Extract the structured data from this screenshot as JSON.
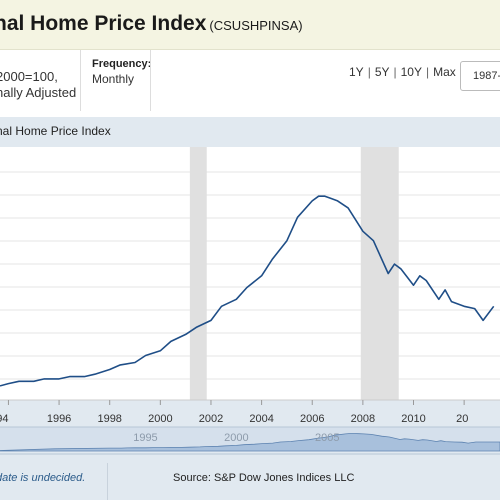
{
  "header": {
    "title": "nal Home Price Index",
    "series_id": "(CSUSHPINSA)"
  },
  "meta": {
    "units_line1": "2000=100,",
    "units_line2": "nally Adjusted",
    "frequency_label": "Frequency:",
    "frequency_value": "Monthly"
  },
  "ranges": [
    "1Y",
    "5Y",
    "10Y",
    "Max"
  ],
  "date_start": "1987-0",
  "colors": {
    "line": "#1f4e87",
    "recession": "#e0e0e0",
    "panel": "#e1e9f0",
    "nav_fill": "#a8c0dc"
  },
  "footer": {
    "note": "date is undecided.",
    "source": "Source: S&P Dow Jones Indices LLC"
  },
  "chart_data": {
    "type": "line",
    "title": "nal Home Price Index",
    "xlabel": "",
    "ylabel": "",
    "xlim": [
      "1993-09",
      "2013-06"
    ],
    "x_ticks": [
      "1994",
      "1996",
      "1998",
      "2000",
      "2002",
      "2004",
      "2006",
      "2008",
      "2010",
      "2012"
    ],
    "x_tick_labels": [
      "94",
      "1996",
      "1998",
      "2000",
      "2002",
      "2004",
      "2006",
      "2008",
      "2010",
      "20"
    ],
    "navigator_labels": [
      "1995",
      "2000",
      "2005"
    ],
    "grid": true,
    "recessions": [
      [
        "2001-03",
        "2001-11"
      ],
      [
        "2007-12",
        "2009-06"
      ]
    ],
    "series": [
      {
        "x": [
          "1993-09",
          "1994-01",
          "1994-06",
          "1995-01",
          "1995-06",
          "1996-01",
          "1996-06",
          "1997-01",
          "1997-06",
          "1998-01",
          "1998-06",
          "1999-01",
          "1999-06",
          "2000-01",
          "2000-06",
          "2001-01",
          "2001-06",
          "2002-01",
          "2002-06",
          "2003-01",
          "2003-06",
          "2004-01",
          "2004-06",
          "2005-01",
          "2005-06",
          "2006-01",
          "2006-04",
          "2006-07",
          "2006-10",
          "2007-01",
          "2007-06",
          "2008-01",
          "2008-06",
          "2009-01",
          "2009-04",
          "2009-07",
          "2010-01",
          "2010-04",
          "2010-07",
          "2011-01",
          "2011-04",
          "2011-07",
          "2012-01",
          "2012-06",
          "2012-10",
          "2013-03"
        ],
        "values": [
          76,
          77,
          78,
          78,
          79,
          79,
          80,
          80,
          81,
          83,
          85,
          86,
          89,
          91,
          95,
          98,
          101,
          104,
          110,
          113,
          118,
          123,
          130,
          138,
          148,
          155,
          157,
          157,
          156,
          155,
          152,
          142,
          138,
          124,
          128,
          126,
          119,
          123,
          121,
          113,
          117,
          112,
          110,
          109,
          104,
          110
        ]
      }
    ]
  }
}
